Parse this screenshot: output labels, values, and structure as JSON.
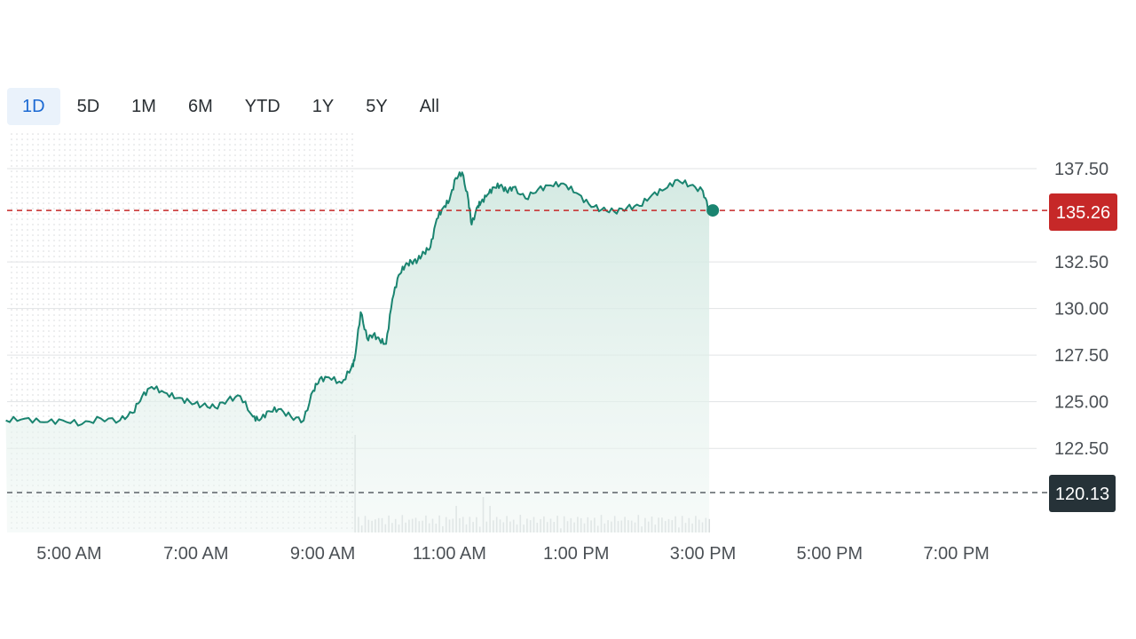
{
  "range_tabs": [
    {
      "label": "1D",
      "active": true
    },
    {
      "label": "5D",
      "active": false
    },
    {
      "label": "1M",
      "active": false
    },
    {
      "label": "6M",
      "active": false
    },
    {
      "label": "YTD",
      "active": false
    },
    {
      "label": "1Y",
      "active": false
    },
    {
      "label": "5Y",
      "active": false
    },
    {
      "label": "All",
      "active": false
    }
  ],
  "colors": {
    "line": "#1a8470",
    "area": "#d9ece6",
    "current_price": "#c62828",
    "previous_close": "#263238",
    "active_tab": "#1b69d3"
  },
  "chart_data": {
    "type": "area",
    "x_tick_labels": [
      "5:00 AM",
      "7:00 AM",
      "9:00 AM",
      "11:00 AM",
      "1:00 PM",
      "3:00 PM",
      "5:00 PM",
      "7:00 PM"
    ],
    "y_tick_labels": [
      "137.50",
      "132.50",
      "130.00",
      "127.50",
      "125.00",
      "122.50"
    ],
    "ylim": [
      120.13,
      137.5
    ],
    "x_range_hours": [
      4.0,
      20.0
    ],
    "current_price": {
      "label": "135.26",
      "value": 135.26
    },
    "previous_close": {
      "label": "120.13",
      "value": 120.13
    },
    "premarket_end_hour": 9.5,
    "series": [
      {
        "x_hours": [
          4.0,
          4.3,
          4.6,
          4.9,
          5.2,
          5.5,
          5.8,
          6.0,
          6.15,
          6.3,
          6.5,
          6.7,
          6.9,
          7.1,
          7.3,
          7.5,
          7.7,
          7.9,
          8.0,
          8.15,
          8.3,
          8.5,
          8.7,
          8.85,
          8.95,
          9.1,
          9.3,
          9.45,
          9.5,
          9.6,
          9.7,
          9.8,
          9.9,
          10.0,
          10.1,
          10.2,
          10.3,
          10.4,
          10.5,
          10.6,
          10.7,
          10.8,
          10.9,
          11.0,
          11.1,
          11.2,
          11.3,
          11.35,
          11.45,
          11.5,
          11.6,
          11.7,
          11.8,
          11.9,
          12.0,
          12.2,
          12.4,
          12.6,
          12.8,
          13.0,
          13.2,
          13.4,
          13.6,
          13.8,
          14.0,
          14.2,
          14.4,
          14.6,
          14.8,
          15.0,
          15.1
        ],
        "values": [
          124.0,
          124.1,
          123.9,
          124.0,
          123.8,
          124.1,
          124.0,
          124.4,
          125.3,
          125.8,
          125.5,
          125.2,
          125.0,
          124.8,
          124.7,
          125.1,
          125.3,
          124.2,
          124.0,
          124.5,
          124.6,
          124.2,
          124.0,
          125.6,
          126.2,
          126.3,
          126.0,
          126.8,
          127.2,
          129.8,
          128.4,
          128.6,
          128.3,
          128.1,
          130.5,
          131.8,
          132.3,
          132.5,
          132.6,
          133.0,
          133.3,
          134.8,
          135.4,
          135.8,
          137.0,
          137.3,
          135.8,
          134.5,
          135.5,
          135.7,
          136.1,
          136.5,
          136.6,
          136.3,
          136.5,
          135.9,
          136.4,
          136.6,
          136.7,
          136.2,
          135.6,
          135.3,
          135.2,
          135.4,
          135.5,
          136.1,
          136.4,
          136.9,
          136.6,
          136.3,
          135.26
        ]
      }
    ],
    "volume_hint": "light gray volume bars along the bottom during regular session"
  }
}
